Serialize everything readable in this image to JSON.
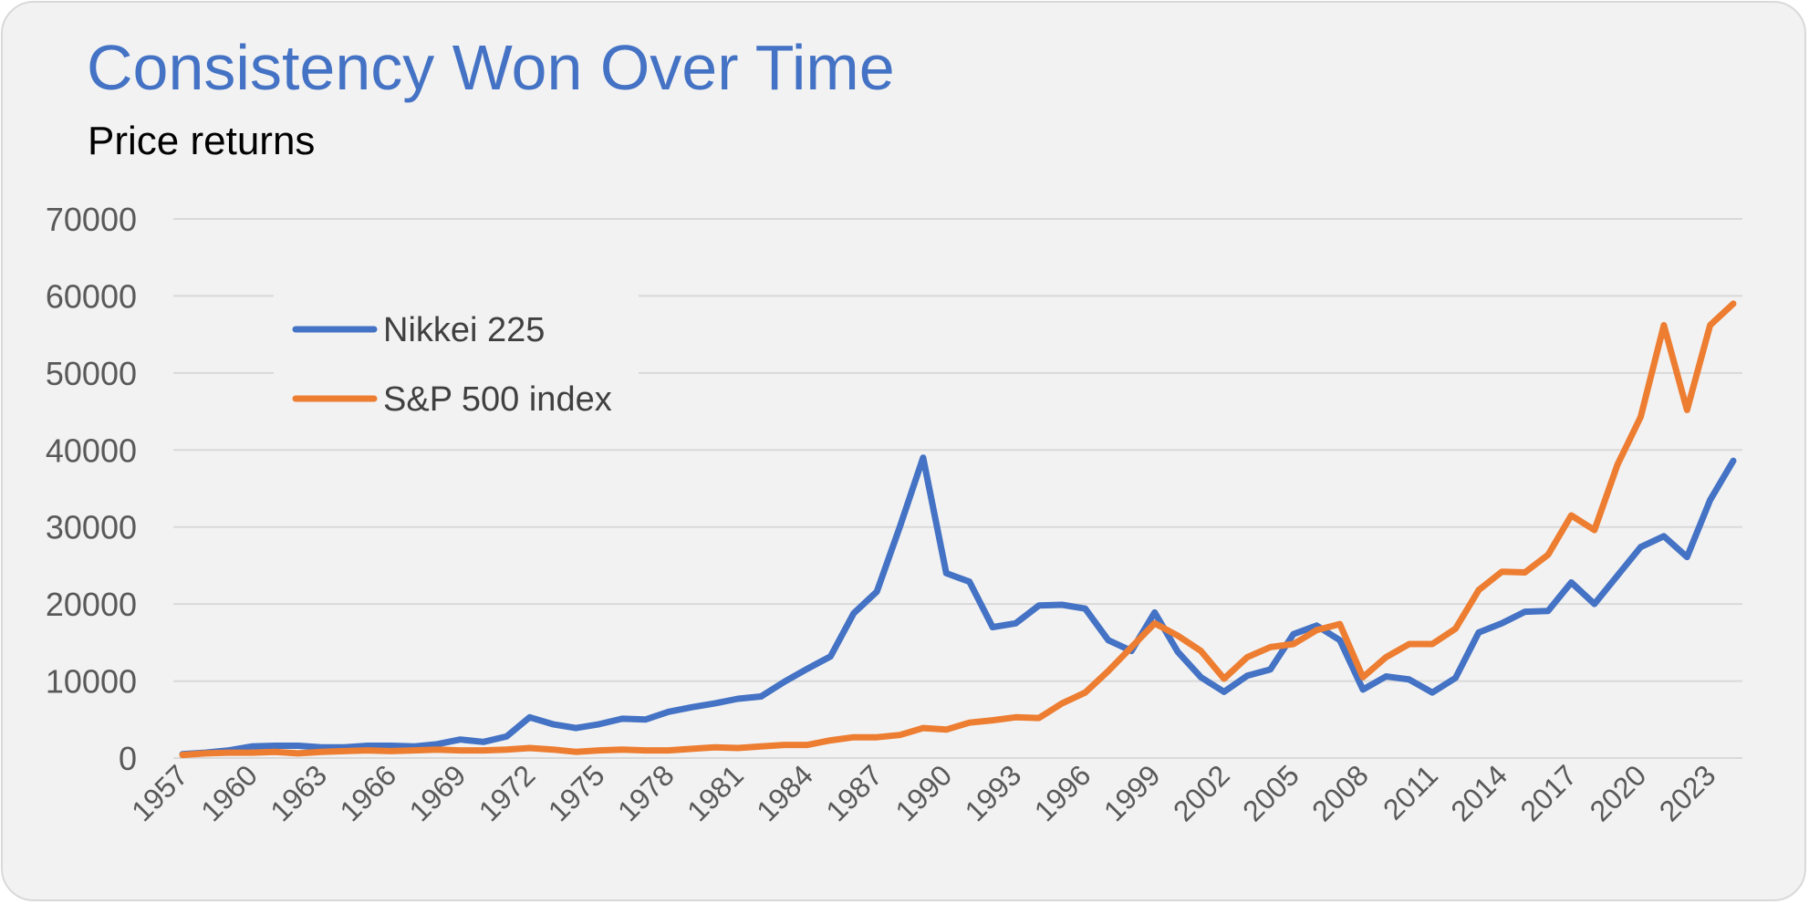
{
  "colors": {
    "background": "#f2f2f2",
    "title": "#4472c4",
    "gridline": "#d9d9d9",
    "nikkei": "#4472c4",
    "sp500": "#ed7d31"
  },
  "chart_data": {
    "type": "line",
    "title": "Consistency Won Over Time",
    "subtitle": "Price returns",
    "xlabel": "",
    "ylabel": "",
    "ylim": [
      0,
      70000
    ],
    "yticks": [
      0,
      10000,
      20000,
      30000,
      40000,
      50000,
      60000,
      70000
    ],
    "grid": true,
    "legend": "upper-left",
    "x_tick_labels": [
      "1957",
      "1960",
      "1963",
      "1966",
      "1969",
      "1972",
      "1975",
      "1978",
      "1981",
      "1984",
      "1987",
      "1990",
      "1993",
      "1996",
      "1999",
      "2002",
      "2005",
      "2008",
      "2011",
      "2014",
      "2017",
      "2020",
      "2023"
    ],
    "x": [
      1957,
      1958,
      1959,
      1960,
      1961,
      1962,
      1963,
      1964,
      1965,
      1966,
      1967,
      1968,
      1969,
      1970,
      1971,
      1972,
      1973,
      1974,
      1975,
      1976,
      1977,
      1978,
      1979,
      1980,
      1981,
      1982,
      1983,
      1984,
      1985,
      1986,
      1987,
      1988,
      1989,
      1990,
      1991,
      1992,
      1993,
      1994,
      1995,
      1996,
      1997,
      1998,
      1999,
      2000,
      2001,
      2002,
      2003,
      2004,
      2005,
      2006,
      2007,
      2008,
      2009,
      2010,
      2011,
      2012,
      2013,
      2014,
      2015,
      2016,
      2017,
      2018,
      2019,
      2020,
      2021,
      2022,
      2023,
      2024
    ],
    "series": [
      {
        "name": "Nikkei 225",
        "color": "#4472c4",
        "values": [
          500,
          700,
          1000,
          1500,
          1600,
          1600,
          1400,
          1400,
          1600,
          1600,
          1500,
          1800,
          2400,
          2100,
          2800,
          5300,
          4400,
          3900,
          4400,
          5100,
          5000,
          6000,
          6600,
          7100,
          7700,
          8000,
          9900,
          11600,
          13200,
          18800,
          21600,
          30100,
          39000,
          24000,
          22900,
          17000,
          17500,
          19800,
          19900,
          19400,
          15300,
          13900,
          18900,
          13800,
          10500,
          8600,
          10700,
          11500,
          16100,
          17200,
          15300,
          8900,
          10600,
          10200,
          8500,
          10400,
          16300,
          17500,
          19000,
          19100,
          22800,
          20000,
          23700,
          27400,
          28800,
          26100,
          33500,
          38600
        ]
      },
      {
        "name": "S&P 500 index",
        "color": "#ed7d31",
        "values": [
          400,
          600,
          700,
          700,
          800,
          600,
          800,
          900,
          1000,
          900,
          1000,
          1100,
          1000,
          1000,
          1100,
          1300,
          1100,
          800,
          1000,
          1100,
          1000,
          1000,
          1200,
          1400,
          1300,
          1500,
          1700,
          1700,
          2300,
          2700,
          2700,
          3000,
          3900,
          3700,
          4600,
          4900,
          5300,
          5200,
          7100,
          8500,
          11300,
          14400,
          17500,
          15900,
          13900,
          10300,
          13100,
          14400,
          14800,
          16600,
          17400,
          10500,
          13100,
          14800,
          14800,
          16800,
          21800,
          24200,
          24100,
          26400,
          31500,
          29600,
          38100,
          44300,
          56200,
          45200,
          56200,
          59000
        ]
      }
    ]
  }
}
